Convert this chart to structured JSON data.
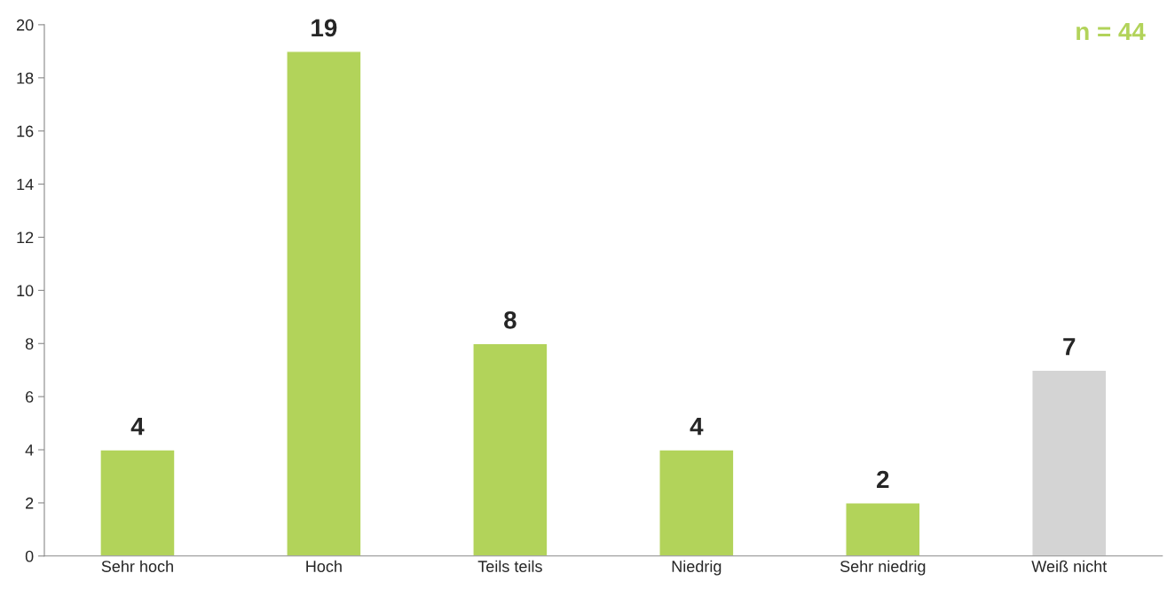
{
  "chart_data": {
    "type": "bar",
    "categories": [
      "Sehr hoch",
      "Hoch",
      "Teils teils",
      "Niedrig",
      "Sehr niedrig",
      "Weiß nicht"
    ],
    "values": [
      4,
      19,
      8,
      4,
      2,
      7
    ],
    "colors": [
      "#b2d35a",
      "#b2d35a",
      "#b2d35a",
      "#b2d35a",
      "#b2d35a",
      "#d4d4d4"
    ],
    "ylim": [
      0,
      20
    ],
    "yticks": [
      0,
      2,
      4,
      6,
      8,
      10,
      12,
      14,
      16,
      18,
      20
    ],
    "data_labels": true,
    "grid": false,
    "legend": false,
    "annotations": [
      "n = 44"
    ]
  }
}
